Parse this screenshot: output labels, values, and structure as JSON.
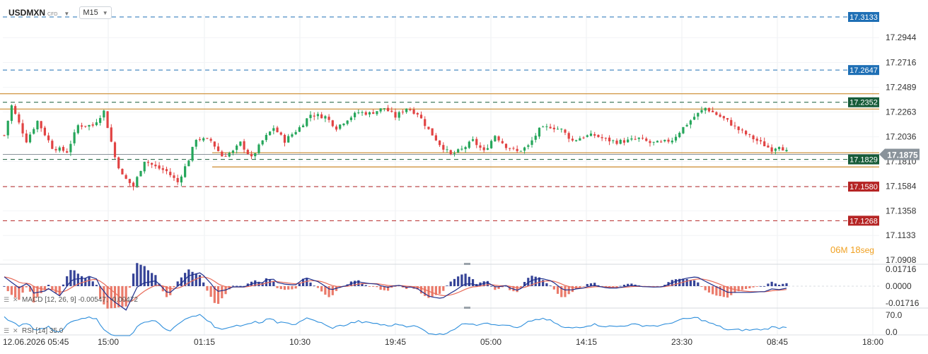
{
  "toolbar": {
    "symbol": "USDMXN",
    "instrument_type": "CFD",
    "timeframe": "M15"
  },
  "countdown": {
    "minutes": "06",
    "minutes_unit": "M",
    "seconds": "18",
    "seconds_unit": "seg"
  },
  "colors": {
    "bull": "#26a65b",
    "bear": "#e14343",
    "support": "#cc8a2c",
    "blue_level": "#1e6fb5",
    "green_level": "#175c39",
    "red_level": "#b52424",
    "current": "#8a939b",
    "macd_line": "#1f2f8c",
    "signal_line": "#e86c5a",
    "rsi_line": "#2f8fdc"
  },
  "chart_data": [
    {
      "type": "candlestick",
      "instrument": "USDMXN",
      "timeframe": "M15",
      "ylim": [
        17.0908,
        17.3133
      ],
      "y_ticks": [
        "17.2944",
        "17.2716",
        "17.2489",
        "17.2263",
        "17.2036",
        "17.1810",
        "17.1584",
        "17.1358",
        "17.1133",
        "17.0908"
      ],
      "x_ticks": [
        "12.06.2026 05:45",
        "15:00",
        "01:15",
        "10:30",
        "19:45",
        "05:00",
        "14:15",
        "23:30",
        "08:45",
        "18:00"
      ],
      "current_price": "17.1875",
      "levels": [
        {
          "value": 17.3133,
          "label": "17.3133",
          "kind": "blue_dashed"
        },
        {
          "value": 17.2647,
          "label": "17.2647",
          "kind": "blue_dashed"
        },
        {
          "value": 17.2352,
          "label": "17.2352",
          "kind": "green_dashed"
        },
        {
          "value": 17.1829,
          "label": "17.1829",
          "kind": "green_dashed"
        },
        {
          "value": 17.158,
          "label": "17.1580",
          "kind": "red_dashed"
        },
        {
          "value": 17.1268,
          "label": "17.1268",
          "kind": "red_dashed"
        }
      ],
      "zones": [
        {
          "top": 17.243,
          "bottom": 17.229
        },
        {
          "top": 17.189,
          "bottom": 17.176
        }
      ],
      "trend_anchors": [
        [
          0,
          17.205
        ],
        [
          2,
          17.232
        ],
        [
          6,
          17.2
        ],
        [
          9,
          17.218
        ],
        [
          13,
          17.194
        ],
        [
          17,
          17.19
        ],
        [
          20,
          17.214
        ],
        [
          24,
          17.214
        ],
        [
          27,
          17.227
        ],
        [
          30,
          17.185
        ],
        [
          32,
          17.168
        ],
        [
          35,
          17.158
        ],
        [
          38,
          17.182
        ],
        [
          41,
          17.176
        ],
        [
          44,
          17.172
        ],
        [
          47,
          17.162
        ],
        [
          50,
          17.183
        ],
        [
          52,
          17.202
        ],
        [
          56,
          17.2
        ],
        [
          59,
          17.186
        ],
        [
          62,
          17.19
        ],
        [
          64,
          17.198
        ],
        [
          67,
          17.184
        ],
        [
          70,
          17.2
        ],
        [
          73,
          17.212
        ],
        [
          76,
          17.2
        ],
        [
          80,
          17.212
        ],
        [
          83,
          17.224
        ],
        [
          87,
          17.222
        ],
        [
          90,
          17.212
        ],
        [
          93,
          17.22
        ],
        [
          96,
          17.226
        ],
        [
          99,
          17.225
        ],
        [
          103,
          17.23
        ],
        [
          106,
          17.222
        ],
        [
          109,
          17.23
        ],
        [
          112,
          17.225
        ],
        [
          115,
          17.21
        ],
        [
          118,
          17.197
        ],
        [
          121,
          17.187
        ],
        [
          124,
          17.192
        ],
        [
          127,
          17.2
        ],
        [
          130,
          17.19
        ],
        [
          133,
          17.205
        ],
        [
          136,
          17.195
        ],
        [
          139,
          17.19
        ],
        [
          142,
          17.195
        ],
        [
          145,
          17.21
        ],
        [
          148,
          17.213
        ],
        [
          151,
          17.21
        ],
        [
          154,
          17.2
        ],
        [
          157,
          17.204
        ],
        [
          160,
          17.205
        ],
        [
          163,
          17.201
        ],
        [
          166,
          17.199
        ],
        [
          169,
          17.2
        ],
        [
          172,
          17.202
        ],
        [
          175,
          17.198
        ],
        [
          178,
          17.198
        ],
        [
          181,
          17.201
        ],
        [
          184,
          17.212
        ],
        [
          187,
          17.222
        ],
        [
          190,
          17.23
        ],
        [
          193,
          17.224
        ],
        [
          196,
          17.218
        ],
        [
          199,
          17.21
        ],
        [
          202,
          17.204
        ],
        [
          205,
          17.198
        ],
        [
          208,
          17.192
        ],
        [
          210,
          17.196
        ],
        [
          212,
          17.19
        ]
      ]
    },
    {
      "type": "histogram+line",
      "indicator": "MACD",
      "label": "MACD [12, 26, 9] -0.00547, -0.00472",
      "ylim": [
        -0.01716,
        0.01716
      ],
      "y_ticks": [
        "0.01716",
        "0.0000",
        "-0.01716"
      ]
    },
    {
      "type": "line",
      "indicator": "RSI",
      "label": "RSI [14] 35.0",
      "y_ticks": [
        "70.0",
        "0.0"
      ]
    }
  ]
}
